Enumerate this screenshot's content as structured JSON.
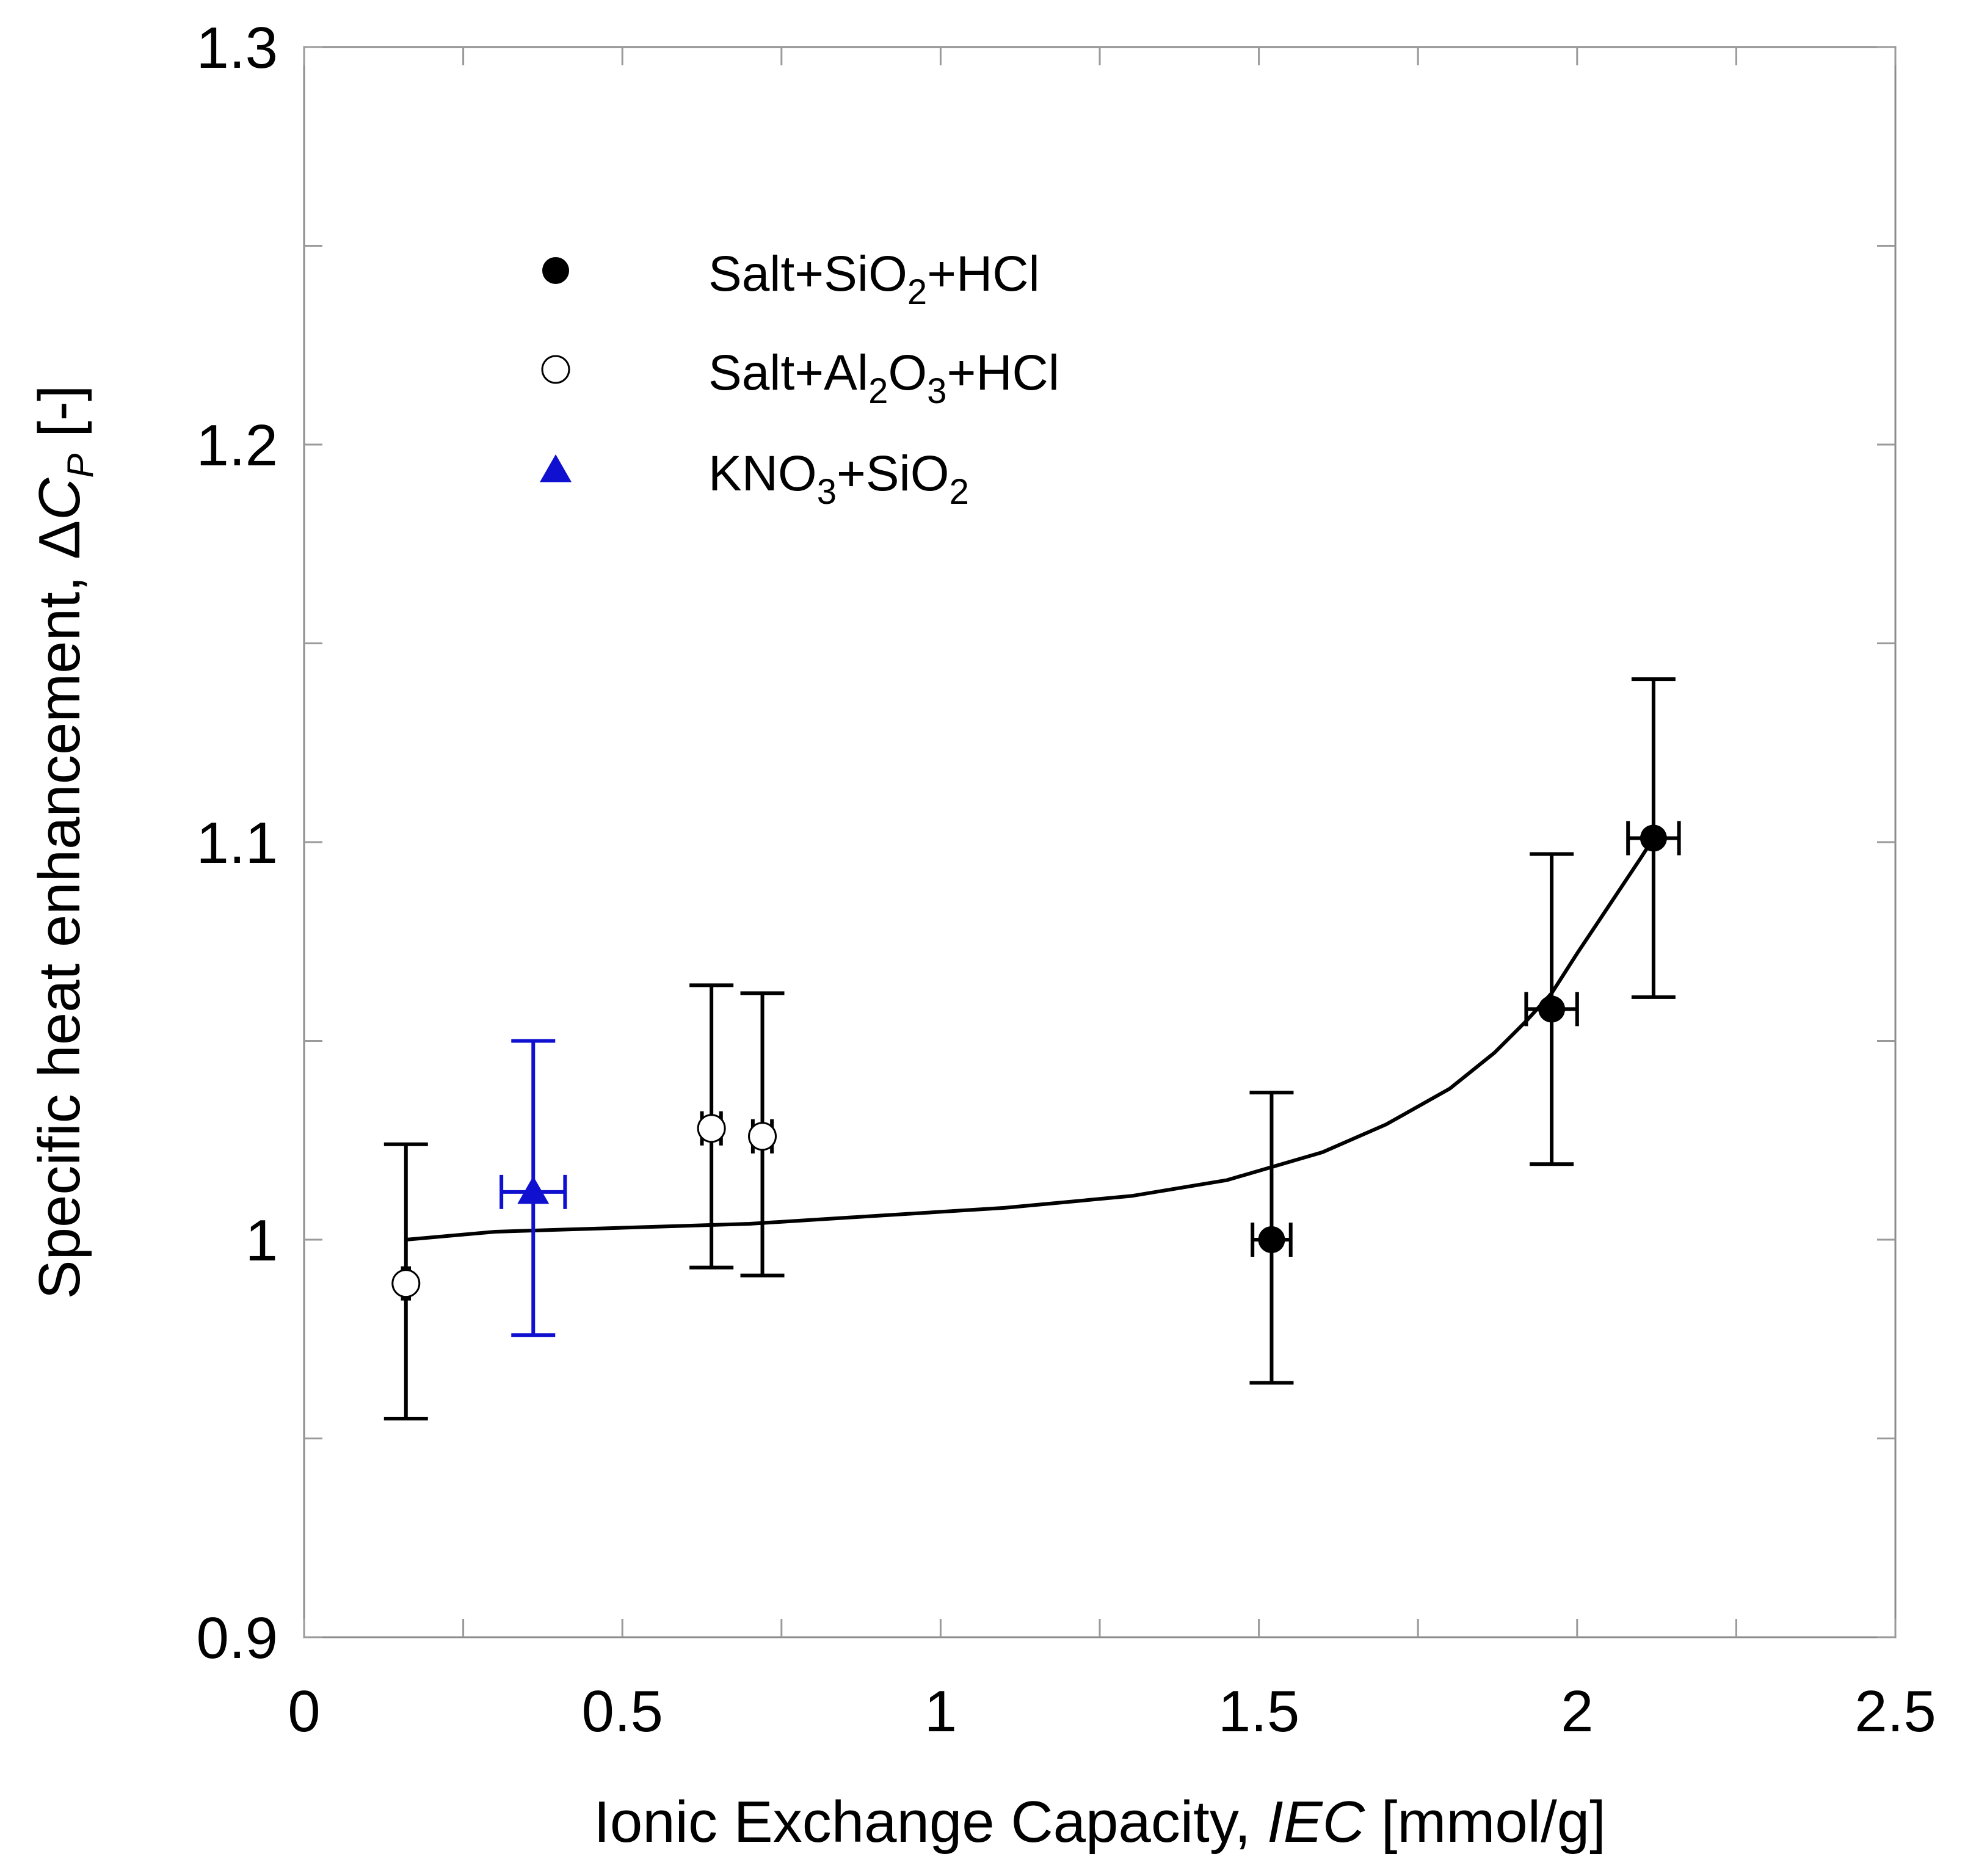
{
  "chart_data": {
    "type": "scatter",
    "xlabel": {
      "main": "Ionic Exchange Capacity, ",
      "italic": "IEC",
      "unit": " [mmol/g]"
    },
    "ylabel": {
      "main": "Specific heat enhancement, Δ",
      "italic": "C",
      "sub": "P",
      "unit": " [-]"
    },
    "xlim": [
      0,
      2.5
    ],
    "ylim": [
      0.9,
      1.3
    ],
    "xticks": [
      0,
      0.5,
      1,
      1.5,
      2,
      2.5
    ],
    "xtick_labels": [
      "0",
      "0.5",
      "1",
      "1.5",
      "2",
      "2.5"
    ],
    "yticks": [
      0.9,
      1.0,
      1.1,
      1.2,
      1.3
    ],
    "ytick_labels": [
      "0.9",
      "1",
      "1.1",
      "1.2",
      "1.3"
    ],
    "legend_position": "top-left",
    "series": [
      {
        "name": "Salt+SiO2+HCl",
        "label_parts": [
          [
            "Salt+SiO",
            ""
          ],
          [
            "2",
            "sub"
          ],
          [
            "+HCl",
            ""
          ]
        ],
        "marker": "filled-circle",
        "color": "#000000",
        "points": [
          {
            "x": 1.52,
            "y": 1.0,
            "yerr": [
              0.964,
              1.037
            ],
            "xerr": [
              1.49,
              1.55
            ]
          },
          {
            "x": 1.96,
            "y": 1.058,
            "yerr": [
              1.019,
              1.097
            ],
            "xerr": [
              1.92,
              2.0
            ]
          },
          {
            "x": 2.12,
            "y": 1.101,
            "yerr": [
              1.061,
              1.141
            ],
            "xerr": [
              2.08,
              2.16
            ]
          }
        ]
      },
      {
        "name": "Salt+Al2O3+HCl",
        "label_parts": [
          [
            "Salt+Al",
            ""
          ],
          [
            "2",
            "sub"
          ],
          [
            "O",
            ""
          ],
          [
            "3",
            "sub"
          ],
          [
            "+HCl",
            ""
          ]
        ],
        "marker": "open-circle",
        "color": "#000000",
        "points": [
          {
            "x": 0.16,
            "y": 0.989,
            "yerr": [
              0.955,
              1.024
            ],
            "xerr": [
              0.155,
              0.165
            ]
          },
          {
            "x": 0.64,
            "y": 1.028,
            "yerr": [
              0.993,
              1.064
            ],
            "xerr": [
              0.625,
              0.655
            ]
          },
          {
            "x": 0.72,
            "y": 1.026,
            "yerr": [
              0.991,
              1.062
            ],
            "xerr": [
              0.705,
              0.735
            ]
          }
        ]
      },
      {
        "name": "KNO3+SiO2",
        "label_parts": [
          [
            "KNO",
            ""
          ],
          [
            "3",
            "sub"
          ],
          [
            "+SiO",
            ""
          ],
          [
            "2",
            "sub"
          ]
        ],
        "marker": "filled-triangle",
        "color": "#1010d0",
        "points": [
          {
            "x": 0.36,
            "y": 1.012,
            "yerr": [
              0.976,
              1.05
            ],
            "xerr": [
              0.31,
              0.41
            ]
          }
        ]
      }
    ],
    "fit_curve": {
      "color": "#000000",
      "points": [
        [
          0.16,
          1.0
        ],
        [
          0.3,
          1.002
        ],
        [
          0.5,
          1.003
        ],
        [
          0.7,
          1.004
        ],
        [
          0.9,
          1.006
        ],
        [
          1.1,
          1.008
        ],
        [
          1.3,
          1.011
        ],
        [
          1.45,
          1.015
        ],
        [
          1.6,
          1.022
        ],
        [
          1.7,
          1.029
        ],
        [
          1.8,
          1.038
        ],
        [
          1.87,
          1.047
        ],
        [
          1.92,
          1.055
        ],
        [
          1.96,
          1.062
        ],
        [
          2.0,
          1.072
        ],
        [
          2.05,
          1.084
        ],
        [
          2.1,
          1.096
        ],
        [
          2.12,
          1.101
        ]
      ]
    }
  }
}
